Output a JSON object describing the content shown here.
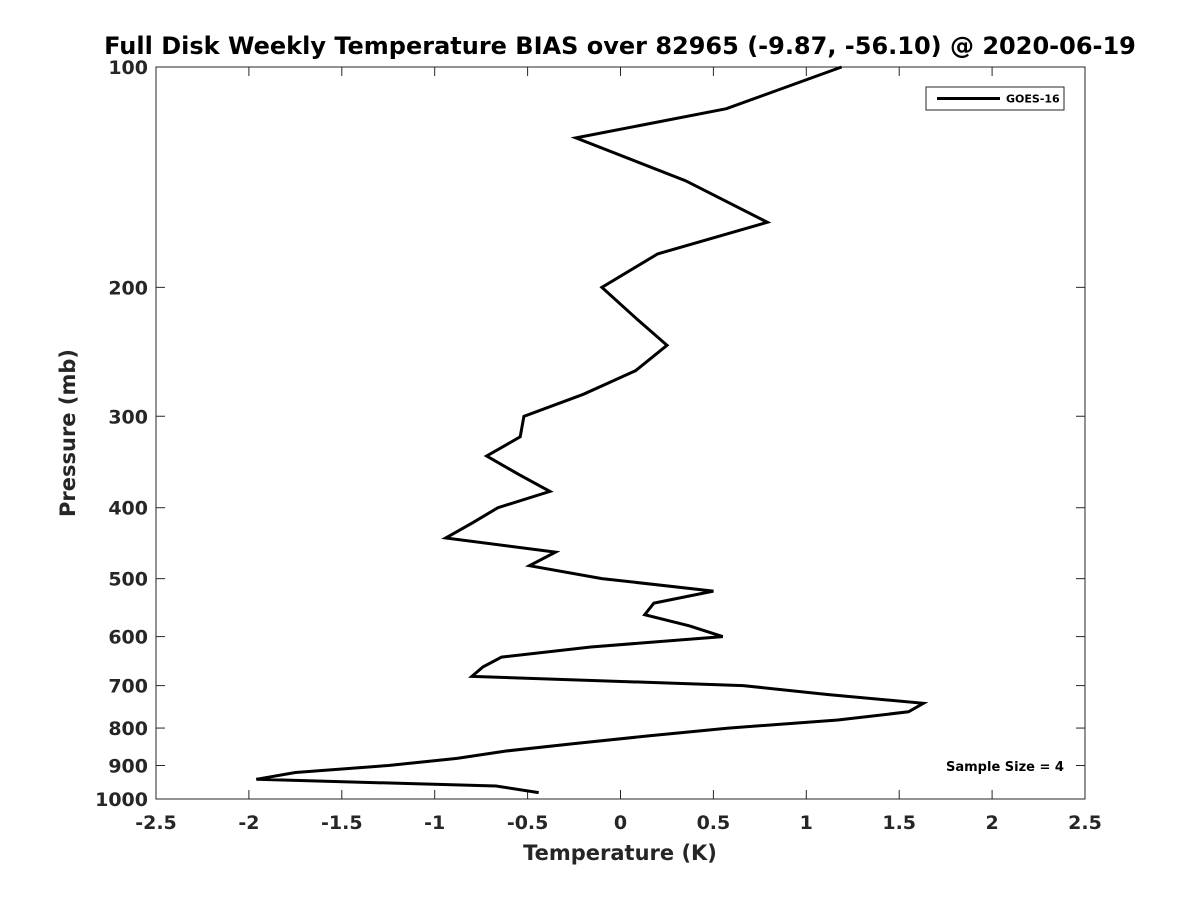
{
  "chart_data": {
    "type": "line",
    "title": "Full Disk Weekly Temperature BIAS over 82965 (-9.87, -56.10) @ 2020-06-19",
    "xlabel": "Temperature (K)",
    "ylabel": "Pressure (mb)",
    "xlim": [
      -2.5,
      2.5
    ],
    "ylim": [
      100,
      1000
    ],
    "y_scale": "log",
    "y_reversed": true,
    "x_ticks": [
      -2.5,
      -2,
      -1.5,
      -1,
      -0.5,
      0,
      0.5,
      1,
      1.5,
      2,
      2.5
    ],
    "x_tick_labels": [
      "-2.5",
      "-2",
      "-1.5",
      "-1",
      "-0.5",
      "0",
      "0.5",
      "1",
      "1.5",
      "2",
      "2.5"
    ],
    "y_ticks": [
      100,
      200,
      300,
      400,
      500,
      600,
      700,
      800,
      900,
      1000
    ],
    "y_tick_labels": [
      "100",
      "200",
      "300",
      "400",
      "500",
      "600",
      "700",
      "800",
      "900",
      "1000"
    ],
    "grid": false,
    "legend_position": "top-right",
    "annotation": "Sample Size = 4",
    "series": [
      {
        "name": "GOES-16",
        "color": "#000000",
        "points": [
          {
            "x": 1.19,
            "y": 100
          },
          {
            "x": 0.57,
            "y": 114
          },
          {
            "x": -0.24,
            "y": 125
          },
          {
            "x": 0.35,
            "y": 143
          },
          {
            "x": 0.79,
            "y": 163
          },
          {
            "x": 0.2,
            "y": 180
          },
          {
            "x": -0.1,
            "y": 200
          },
          {
            "x": 0.08,
            "y": 220
          },
          {
            "x": 0.25,
            "y": 240
          },
          {
            "x": 0.08,
            "y": 260
          },
          {
            "x": -0.2,
            "y": 280
          },
          {
            "x": -0.52,
            "y": 300
          },
          {
            "x": -0.54,
            "y": 320
          },
          {
            "x": -0.72,
            "y": 340
          },
          {
            "x": -0.55,
            "y": 360
          },
          {
            "x": -0.38,
            "y": 380
          },
          {
            "x": -0.66,
            "y": 400
          },
          {
            "x": -0.8,
            "y": 420
          },
          {
            "x": -0.94,
            "y": 440
          },
          {
            "x": -0.35,
            "y": 460
          },
          {
            "x": -0.49,
            "y": 480
          },
          {
            "x": -0.1,
            "y": 500
          },
          {
            "x": 0.5,
            "y": 520
          },
          {
            "x": 0.18,
            "y": 540
          },
          {
            "x": 0.13,
            "y": 560
          },
          {
            "x": 0.37,
            "y": 580
          },
          {
            "x": 0.55,
            "y": 600
          },
          {
            "x": -0.16,
            "y": 620
          },
          {
            "x": -0.64,
            "y": 640
          },
          {
            "x": -0.74,
            "y": 660
          },
          {
            "x": -0.8,
            "y": 680
          },
          {
            "x": 0.66,
            "y": 700
          },
          {
            "x": 1.12,
            "y": 720
          },
          {
            "x": 1.63,
            "y": 740
          },
          {
            "x": 1.55,
            "y": 760
          },
          {
            "x": 1.17,
            "y": 780
          },
          {
            "x": 0.58,
            "y": 800
          },
          {
            "x": 0.15,
            "y": 820
          },
          {
            "x": -0.25,
            "y": 840
          },
          {
            "x": -0.62,
            "y": 860
          },
          {
            "x": -0.88,
            "y": 880
          },
          {
            "x": -1.25,
            "y": 900
          },
          {
            "x": -1.75,
            "y": 920
          },
          {
            "x": -1.96,
            "y": 940
          },
          {
            "x": -0.67,
            "y": 960
          },
          {
            "x": -0.44,
            "y": 980
          }
        ]
      }
    ]
  }
}
